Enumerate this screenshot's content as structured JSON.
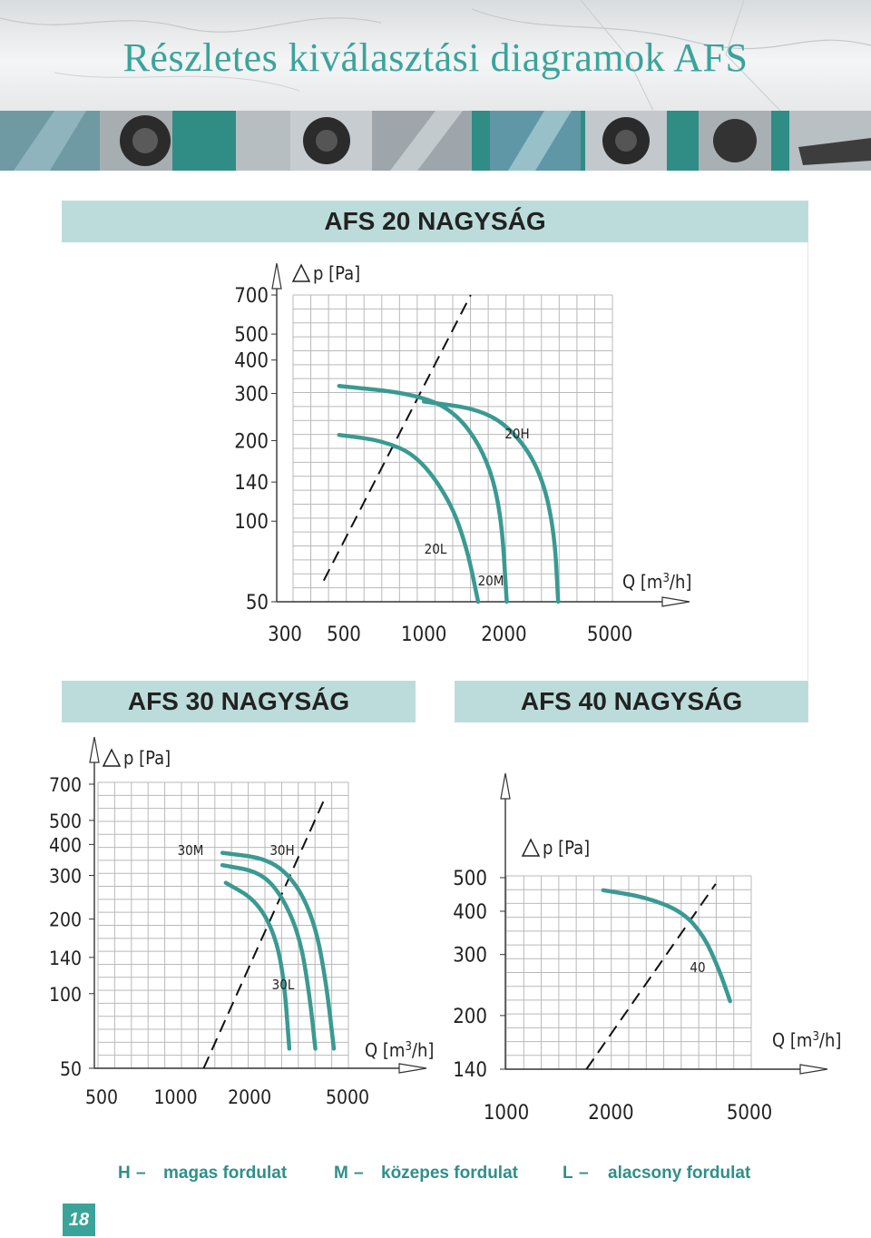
{
  "page": {
    "title": "Részletes kiválasztási diagramok AFS",
    "page_number": "18"
  },
  "colors": {
    "accent": "#3aa49a",
    "curve": "#3a9a92",
    "section_bar": "#bcdcdb",
    "photo_strip": "#2f8d86"
  },
  "sections": {
    "afs20": "AFS 20 NAGYSÁG",
    "afs30": "AFS 30 NAGYSÁG",
    "afs40": "AFS 40 NAGYSÁG"
  },
  "legend": [
    {
      "letter": "H",
      "dash": "–",
      "text": "magas fordulat"
    },
    {
      "letter": "M",
      "dash": "–",
      "text": "közepes fordulat"
    },
    {
      "letter": "L",
      "dash": "–",
      "text": "alacsony fordulat"
    }
  ],
  "chart_data": [
    {
      "type": "line",
      "title": "AFS 20 NAGYSÁG",
      "xlabel": "Q [m3/h]",
      "ylabel": "p [Pa]",
      "xscale": "log",
      "yscale": "log",
      "x_ticks": [
        "300",
        "500",
        "1000",
        "2000",
        "5000"
      ],
      "y_ticks": [
        "700",
        "500",
        "400",
        "300",
        "200",
        "140",
        "100",
        "50"
      ],
      "grid": true,
      "series": [
        {
          "name": "20L",
          "points": [
            [
              480,
              210
            ],
            [
              700,
              200
            ],
            [
              950,
              175
            ],
            [
              1250,
              120
            ],
            [
              1450,
              80
            ],
            [
              1600,
              50
            ]
          ]
        },
        {
          "name": "20M",
          "points": [
            [
              480,
              320
            ],
            [
              900,
              300
            ],
            [
              1300,
              260
            ],
            [
              1700,
              180
            ],
            [
              1950,
              110
            ],
            [
              2050,
              50
            ]
          ]
        },
        {
          "name": "20H",
          "points": [
            [
              1000,
              280
            ],
            [
              1700,
              260
            ],
            [
              2300,
              205
            ],
            [
              2800,
              145
            ],
            [
              3100,
              90
            ],
            [
              3200,
              50
            ]
          ]
        }
      ],
      "system_line": [
        [
          420,
          60
        ],
        [
          1500,
          700
        ]
      ]
    },
    {
      "type": "line",
      "title": "AFS 30 NAGYSÁG",
      "xlabel": "Q [m3/h]",
      "ylabel": "p [Pa]",
      "xscale": "log",
      "yscale": "log",
      "x_ticks": [
        "500",
        "1000",
        "2000",
        "5000"
      ],
      "y_ticks": [
        "700",
        "500",
        "400",
        "300",
        "200",
        "140",
        "100",
        "50"
      ],
      "grid": true,
      "series": [
        {
          "name": "30L",
          "points": [
            [
              1600,
              280
            ],
            [
              2100,
              240
            ],
            [
              2500,
              180
            ],
            [
              2750,
              120
            ],
            [
              2900,
              60
            ]
          ]
        },
        {
          "name": "30M",
          "points": [
            [
              1550,
              330
            ],
            [
              2200,
              310
            ],
            [
              2700,
              250
            ],
            [
              3200,
              170
            ],
            [
              3500,
              100
            ],
            [
              3700,
              60
            ]
          ]
        },
        {
          "name": "30H",
          "points": [
            [
              1550,
              370
            ],
            [
              2400,
              350
            ],
            [
              3100,
              280
            ],
            [
              3700,
              190
            ],
            [
              4100,
              110
            ],
            [
              4400,
              60
            ]
          ]
        }
      ],
      "system_line": [
        [
          1300,
          50
        ],
        [
          4000,
          600
        ]
      ]
    },
    {
      "type": "line",
      "title": "AFS 40 NAGYSÁG",
      "xlabel": "Q [m3/h]",
      "ylabel": "p [Pa]",
      "xscale": "log",
      "yscale": "log",
      "x_ticks": [
        "1000",
        "2000",
        "5000"
      ],
      "y_ticks": [
        "500",
        "400",
        "300",
        "200",
        "140"
      ],
      "grid": true,
      "series": [
        {
          "name": "40",
          "points": [
            [
              1900,
              460
            ],
            [
              2500,
              440
            ],
            [
              3200,
              400
            ],
            [
              3700,
              340
            ],
            [
              4100,
              270
            ],
            [
              4400,
              220
            ]
          ]
        }
      ],
      "system_line": [
        [
          1700,
          140
        ],
        [
          4000,
          480
        ]
      ]
    }
  ]
}
